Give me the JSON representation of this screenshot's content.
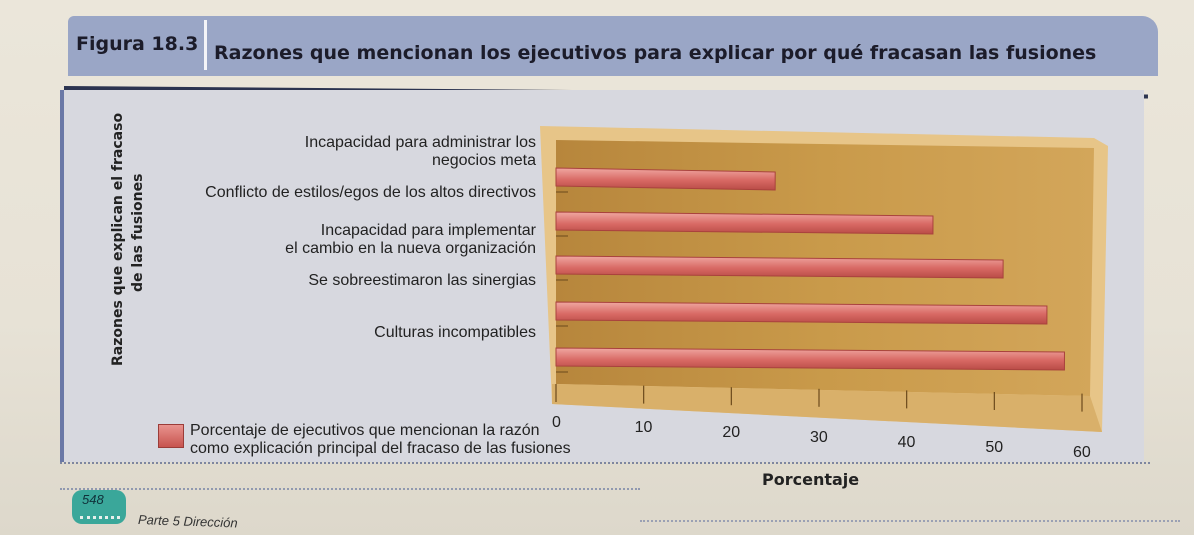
{
  "figure": {
    "label": "Figura 18.3",
    "title": "Razones que mencionan los ejecutivos para explicar por qué fracasan las fusiones"
  },
  "footer": {
    "page_number": "548",
    "section_text": "Parte 5 Dirección"
  },
  "chart_data": {
    "type": "bar",
    "orientation": "horizontal",
    "title": "Razones que mencionan los ejecutivos para explicar por qué fracasan las fusiones",
    "ylabel_lines": [
      "Razones que explican el fracaso",
      "de las fusiones"
    ],
    "xlabel": "Porcentaje",
    "categories": [
      [
        "Incapacidad para administrar los",
        "negocios meta"
      ],
      [
        "Conflicto de estilos/egos de los altos directivos"
      ],
      [
        "Incapacidad para implementar",
        "el cambio en la nueva organización"
      ],
      [
        "Se sobreestimaron las sinergias"
      ],
      [
        "Culturas incompatibles"
      ]
    ],
    "series": [
      {
        "name_lines": [
          "Porcentaje de ejecutivos que mencionan la razón",
          "como explicación principal del fracaso de las fusiones"
        ],
        "values": [
          25,
          43,
          51,
          56,
          58
        ]
      }
    ],
    "xlim": [
      0,
      60
    ],
    "xticks": [
      0,
      10,
      20,
      30,
      40,
      50,
      60
    ],
    "colors": {
      "bar": "#d86964",
      "bar_light": "#f0a8a2",
      "plot_background": "#c99a4a",
      "plot_frame": "#e7c588"
    },
    "legend_position": "bottom-left"
  }
}
